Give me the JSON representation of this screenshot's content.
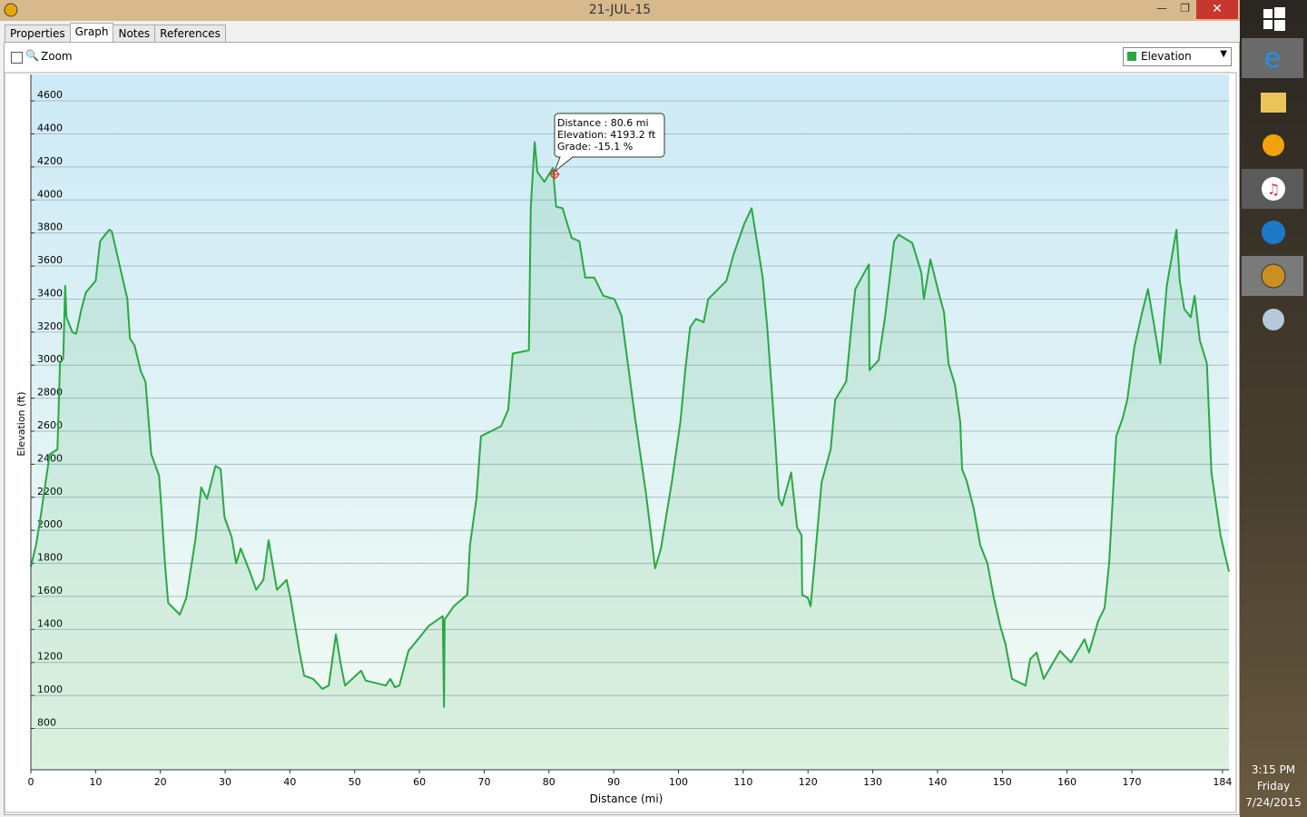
{
  "window": {
    "title": "21-JUL-15",
    "tabs": [
      "Properties",
      "Graph",
      "Notes",
      "References"
    ],
    "zoom": "Zoom"
  },
  "tooltip": {
    "lines": [
      "Distance : 80.6 mi",
      "Elevation: 4193.2 ft",
      "Grade: -15.1 %"
    ]
  },
  "taskbar": {
    "time": "3:15 PM",
    "day": "Friday",
    "date": "7/24/2015"
  },
  "chart_data": {
    "type": "line",
    "x_label": "Distance (mi)",
    "y_label": "Elevation (ft)",
    "xlim": [
      0,
      185
    ],
    "ylim": [
      550,
      4760
    ],
    "xticks": [
      0,
      10,
      20,
      30,
      40,
      50,
      60,
      70,
      80,
      90,
      100,
      110,
      120,
      130,
      140,
      150,
      160,
      170,
      184
    ],
    "yticks": [
      800,
      1000,
      1200,
      1400,
      1600,
      1800,
      2000,
      2200,
      2400,
      2600,
      2800,
      3000,
      3200,
      3400,
      3600,
      3800,
      4000,
      4200,
      4400,
      4600
    ],
    "grid": true,
    "x": [
      0,
      0.8,
      1.5,
      2.9,
      4.1,
      4.5,
      5.0,
      5.3,
      5.5,
      6.4,
      7.0,
      7.8,
      8.5,
      10.0,
      10.7,
      12.1,
      12.5,
      13.5,
      14.9,
      15.3,
      16.0,
      17.0,
      17.7,
      18.6,
      19.8,
      20.2,
      20.7,
      21.2,
      23.0,
      24.0,
      25.4,
      26.3,
      27.2,
      28.5,
      29.3,
      29.9,
      31.0,
      31.7,
      32.4,
      33.8,
      34.8,
      35.9,
      36.7,
      38.0,
      39.5,
      40.1,
      41.5,
      42.2,
      43.6,
      45.0,
      46.0,
      47.1,
      47.8,
      48.5,
      51.0,
      51.7,
      54.8,
      55.5,
      56.2,
      56.9,
      58.3,
      60.4,
      61.4,
      63.6,
      63.8,
      63.9,
      65.3,
      67.4,
      67.8,
      68.8,
      69.5,
      72.6,
      73.7,
      74.4,
      76.9,
      77.2,
      77.8,
      78.2,
      79.3,
      80.6,
      81.1,
      82.1,
      83.5,
      84.7,
      85.6,
      87.0,
      88.4,
      90.1,
      91.2,
      93.3,
      95.0,
      96.4,
      97.3,
      99.0,
      100.3,
      101.1,
      101.8,
      102.7,
      103.9,
      104.6,
      107.4,
      108.5,
      110.2,
      111.3,
      113.0,
      113.7,
      114.4,
      114.8,
      115.5,
      116.0,
      117.4,
      118.3,
      119.0,
      119.1,
      120.0,
      120.4,
      120.9,
      122.1,
      123.5,
      124.2,
      125.9,
      126.7,
      127.3,
      129.4,
      129.5,
      130.9,
      131.9,
      133.3,
      134.0,
      136.1,
      137.5,
      137.9,
      138.9,
      140.3,
      141.0,
      141.7,
      142.7,
      143.5,
      143.8,
      144.5,
      145.6,
      146.6,
      147.7,
      148.7,
      149.7,
      150.5,
      151.5,
      153.6,
      154.3,
      155.3,
      156.4,
      158.9,
      160.6,
      162.7,
      163.4,
      164.8,
      165.8,
      166.5,
      167.6,
      168.6,
      169.3,
      170.4,
      171.6,
      172.5,
      173.5,
      174.4,
      175.4,
      176.9,
      177.4,
      178.1,
      179.1,
      179.7,
      180.5,
      181.6,
      182.3,
      183.7,
      184.4,
      185.0
    ],
    "series": [
      {
        "name": "Elevation",
        "color": "#2aa845",
        "values": [
          1780,
          1910,
          2080,
          2460,
          2490,
          3010,
          3040,
          3480,
          3290,
          3200,
          3190,
          3340,
          3440,
          3510,
          3750,
          3820,
          3810,
          3640,
          3400,
          3160,
          3120,
          2960,
          2900,
          2460,
          2330,
          2110,
          1800,
          1560,
          1490,
          1590,
          1940,
          2260,
          2190,
          2390,
          2370,
          2080,
          1960,
          1800,
          1890,
          1750,
          1640,
          1700,
          1940,
          1640,
          1700,
          1590,
          1260,
          1120,
          1100,
          1040,
          1060,
          1370,
          1200,
          1060,
          1150,
          1090,
          1060,
          1100,
          1050,
          1060,
          1270,
          1370,
          1420,
          1480,
          930,
          1460,
          1540,
          1610,
          1910,
          2190,
          2570,
          2630,
          2730,
          3070,
          3090,
          3960,
          4350,
          4170,
          4110,
          4193.2,
          3960,
          3950,
          3770,
          3750,
          3530,
          3530,
          3420,
          3400,
          3300,
          2680,
          2220,
          1770,
          1890,
          2300,
          2660,
          2990,
          3230,
          3280,
          3260,
          3400,
          3510,
          3670,
          3860,
          3950,
          3530,
          3230,
          2850,
          2630,
          2190,
          2150,
          2350,
          2020,
          1970,
          1610,
          1590,
          1540,
          1750,
          2290,
          2490,
          2790,
          2900,
          3230,
          3460,
          3610,
          2970,
          3030,
          3290,
          3750,
          3790,
          3740,
          3560,
          3400,
          3640,
          3420,
          3320,
          3010,
          2880,
          2660,
          2370,
          2300,
          2130,
          1910,
          1800,
          1590,
          1420,
          1310,
          1100,
          1060,
          1220,
          1260,
          1100,
          1270,
          1200,
          1340,
          1260,
          1450,
          1530,
          1800,
          2570,
          2680,
          2790,
          3110,
          3320,
          3460,
          3230,
          3010,
          3480,
          3820,
          3510,
          3340,
          3290,
          3420,
          3150,
          3010,
          2350,
          1970,
          1850,
          1750
        ]
      }
    ]
  }
}
